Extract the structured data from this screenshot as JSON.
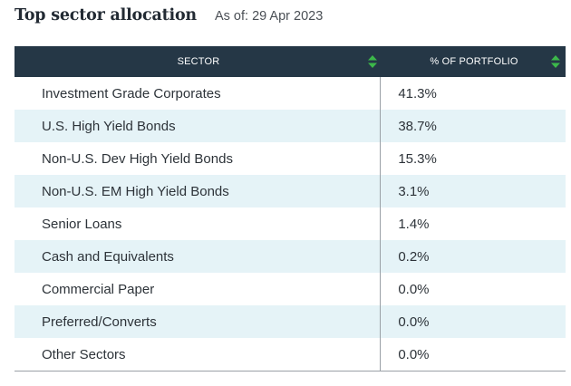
{
  "header": {
    "title": "Top sector allocation",
    "as_of": "As of: 29 Apr 2023"
  },
  "table": {
    "columns": [
      "SECTOR",
      "% OF PORTFOLIO"
    ],
    "sort_icon": "sort-arrows-icon",
    "sort_icon_color": "#3cb84a",
    "header_bg": "#253746",
    "stripe_bg": "#e5f3f7",
    "rows": [
      {
        "sector": "Investment Grade Corporates",
        "pct": "41.3%"
      },
      {
        "sector": "U.S. High Yield Bonds",
        "pct": "38.7%"
      },
      {
        "sector": "Non-U.S. Dev High Yield Bonds",
        "pct": "15.3%"
      },
      {
        "sector": "Non-U.S. EM High Yield Bonds",
        "pct": "3.1%"
      },
      {
        "sector": "Senior Loans",
        "pct": "1.4%"
      },
      {
        "sector": "Cash and Equivalents",
        "pct": "0.2%"
      },
      {
        "sector": "Commercial Paper",
        "pct": "0.0%"
      },
      {
        "sector": "Preferred/Converts",
        "pct": "0.0%"
      },
      {
        "sector": "Other Sectors",
        "pct": "0.0%"
      }
    ]
  }
}
